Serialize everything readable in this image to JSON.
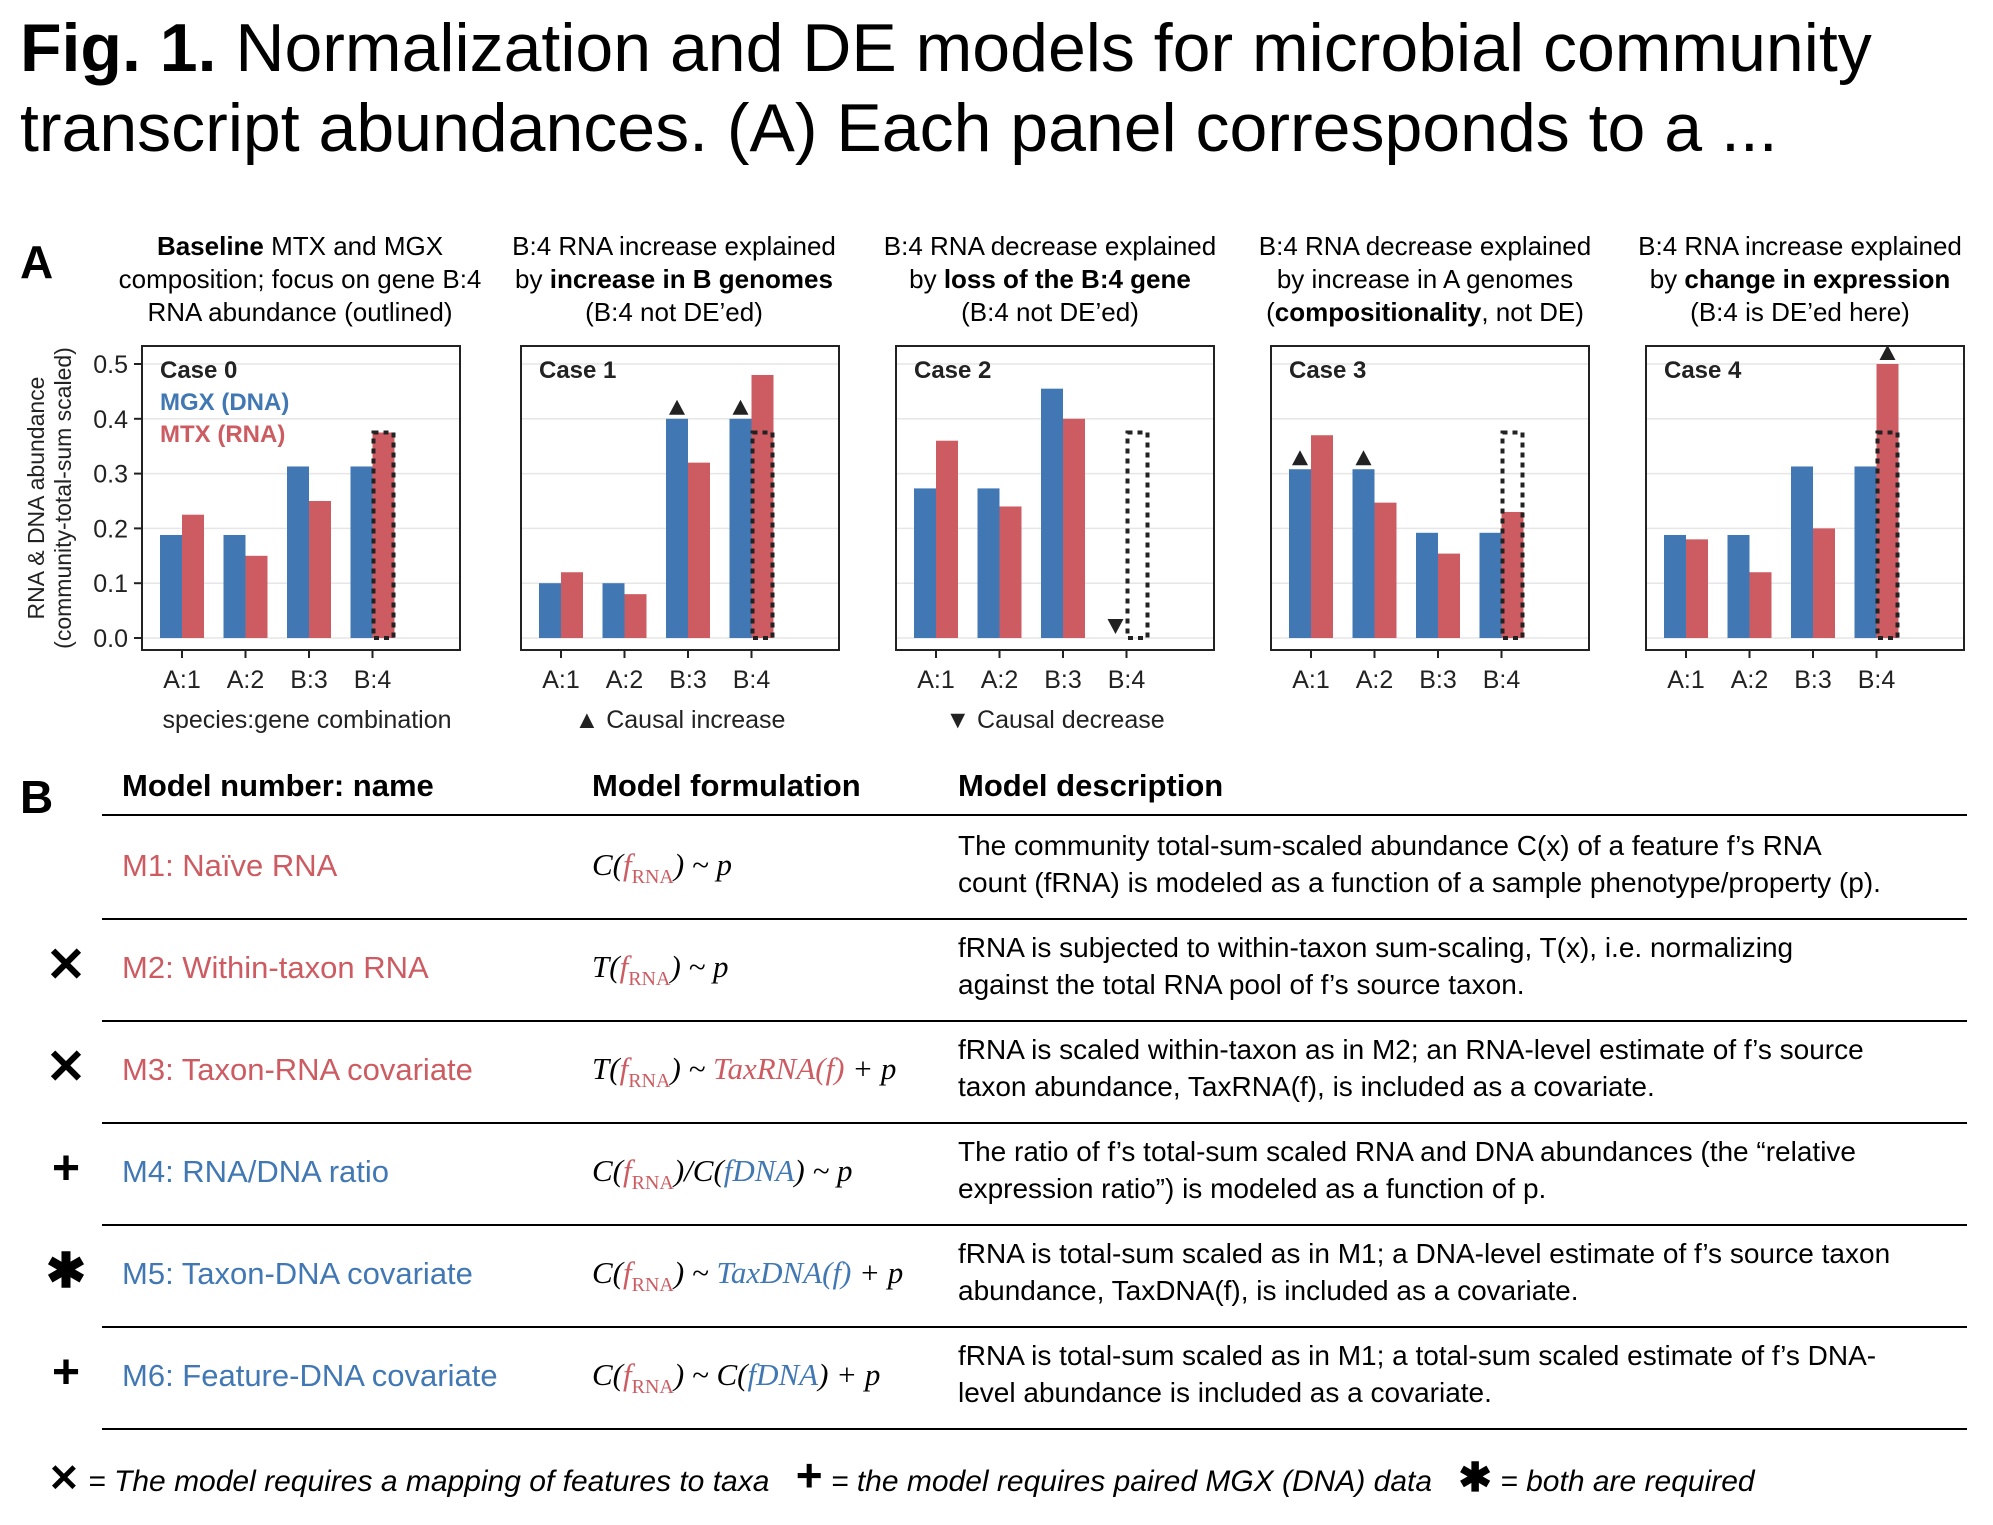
{
  "figure": {
    "title_bold": "Fig. 1.",
    "title_rest": " Normalization and DE models for microbial community transcript abundances. (A) Each panel corresponds to a ...",
    "panel_a_letter": "A",
    "panel_b_letter": "B"
  },
  "colors": {
    "dna": "#4178b4",
    "rna": "#cc5c62",
    "highlight": "#000000"
  },
  "panel_headers": [
    {
      "l1_bold": "Baseline",
      "l1": " MTX and MGX",
      "l2_pre": "composition; focus on gene B:4",
      "l2_bold": "",
      "l3": "RNA abundance (outlined)"
    },
    {
      "l1_bold": "",
      "l1": "B:4 RNA increase explained",
      "l2_pre": "by ",
      "l2_bold": "increase in B genomes",
      "l3": "(B:4 not DE’ed)"
    },
    {
      "l1_bold": "",
      "l1": "B:4 RNA decrease explained",
      "l2_pre": "by ",
      "l2_bold": "loss of the B:4 gene",
      "l3": "(B:4 not DE’ed)"
    },
    {
      "l1_bold": "",
      "l1": "B:4 RNA decrease explained",
      "l2_pre": "by increase in A genomes",
      "l2_bold": "",
      "l3_pre": "(",
      "l3_bold": "compositionality",
      "l3_post": ", not DE)"
    },
    {
      "l1_bold": "",
      "l1": "B:4 RNA increase explained",
      "l2_pre": "by ",
      "l2_bold": "change in expression",
      "l3": "(B:4 is DE’ed here)"
    }
  ],
  "chart_data": [
    {
      "type": "bar",
      "title": "Case 0",
      "categories": [
        "A:1",
        "A:2",
        "B:3",
        "B:4"
      ],
      "series": [
        {
          "name": "MGX (DNA)",
          "values": [
            0.188,
            0.188,
            0.313,
            0.313
          ]
        },
        {
          "name": "MTX (RNA)",
          "values": [
            0.225,
            0.15,
            0.25,
            0.375
          ]
        }
      ],
      "outlined_category": "B:4",
      "markers": [],
      "ylabel": "RNA & DNA abundance (community-total-sum scaled)",
      "xlabel": "species:gene combination",
      "ylim": [
        0,
        0.5
      ],
      "yticks": [
        "0.0",
        "0.1",
        "0.2",
        "0.3",
        "0.4",
        "0.5"
      ],
      "grid": true,
      "legend": "top-left"
    },
    {
      "type": "bar",
      "title": "Case 1",
      "categories": [
        "A:1",
        "A:2",
        "B:3",
        "B:4"
      ],
      "series": [
        {
          "name": "MGX (DNA)",
          "values": [
            0.1,
            0.1,
            0.4,
            0.4
          ]
        },
        {
          "name": "MTX (RNA)",
          "values": [
            0.12,
            0.08,
            0.32,
            0.48
          ]
        }
      ],
      "outlined_category": "B:4",
      "markers": [
        {
          "category": "B:3",
          "series": 0,
          "dir": "up"
        },
        {
          "category": "B:4",
          "series": 0,
          "dir": "up"
        }
      ],
      "xlabel": "▲ Causal increase",
      "ylim": [
        0,
        0.5
      ],
      "grid": true
    },
    {
      "type": "bar",
      "title": "Case 2",
      "categories": [
        "A:1",
        "A:2",
        "B:3",
        "B:4"
      ],
      "series": [
        {
          "name": "MGX (DNA)",
          "values": [
            0.273,
            0.273,
            0.455,
            0.0
          ]
        },
        {
          "name": "MTX (RNA)",
          "values": [
            0.36,
            0.24,
            0.4,
            0.0
          ]
        }
      ],
      "outlined_category": "B:4",
      "markers": [
        {
          "category": "B:4",
          "series": 0,
          "dir": "down"
        }
      ],
      "xlabel": "▼ Causal decrease",
      "ylim": [
        0,
        0.5
      ],
      "grid": true
    },
    {
      "type": "bar",
      "title": "Case 3",
      "categories": [
        "A:1",
        "A:2",
        "B:3",
        "B:4"
      ],
      "series": [
        {
          "name": "MGX (DNA)",
          "values": [
            0.308,
            0.308,
            0.192,
            0.192
          ]
        },
        {
          "name": "MTX (RNA)",
          "values": [
            0.37,
            0.247,
            0.154,
            0.23
          ]
        }
      ],
      "outlined_category": "B:4",
      "markers": [
        {
          "category": "A:1",
          "series": 0,
          "dir": "up"
        },
        {
          "category": "A:2",
          "series": 0,
          "dir": "up"
        }
      ],
      "xlabel": "",
      "ylim": [
        0,
        0.5
      ],
      "grid": true
    },
    {
      "type": "bar",
      "title": "Case 4",
      "categories": [
        "A:1",
        "A:2",
        "B:3",
        "B:4"
      ],
      "series": [
        {
          "name": "MGX (DNA)",
          "values": [
            0.188,
            0.188,
            0.313,
            0.313
          ]
        },
        {
          "name": "MTX (RNA)",
          "values": [
            0.18,
            0.12,
            0.2,
            0.5
          ]
        }
      ],
      "outlined_category": "B:4",
      "markers": [
        {
          "category": "B:4",
          "series": 1,
          "dir": "up"
        }
      ],
      "xlabel": "",
      "ylim": [
        0,
        0.5
      ],
      "grid": true
    }
  ],
  "table": {
    "headers": [
      "Model number: name",
      "Model formulation",
      "Model description"
    ],
    "rows": [
      {
        "symbol": "",
        "color": "red",
        "name": "M1: Naïve RNA",
        "f": [
          "C(",
          "f",
          "RNA",
          ") ~ p",
          "",
          "",
          ""
        ],
        "d1": "The community total-sum-scaled abundance C(x) of a feature f’s RNA",
        "d2": "count (fRNA) is modeled as a function of a sample phenotype/property (p)."
      },
      {
        "symbol": "✕",
        "color": "red",
        "name": "M2: Within-taxon RNA",
        "f": [
          "T(",
          "f",
          "RNA",
          ") ~ p",
          "",
          "",
          ""
        ],
        "d1": "fRNA is subjected to within-taxon sum-scaling, T(x), i.e. normalizing",
        "d2": "against the total RNA pool of f’s source taxon."
      },
      {
        "symbol": "✕",
        "color": "red",
        "name": "M3: Taxon-RNA covariate",
        "f": [
          "T(",
          "f",
          "RNA",
          ") ~ ",
          "TaxRNA(f)",
          "",
          " + p"
        ],
        "d1": "fRNA is scaled within-taxon as in M2; an RNA-level estimate of f’s source",
        "d2": "taxon abundance, TaxRNA(f), is included as a covariate."
      },
      {
        "symbol": "+",
        "color": "blue",
        "name": "M4: RNA/DNA ratio",
        "f": [
          "C(",
          "f",
          "RNA",
          ")/C(",
          "fDNA",
          "",
          ") ~ p"
        ],
        "d1": "The ratio of f’s total-sum scaled RNA and DNA abundances (the “relative",
        "d2": "expression ratio”) is modeled as a function of p."
      },
      {
        "symbol": "✱",
        "color": "blue",
        "name": "M5: Taxon-DNA covariate",
        "f": [
          "C(",
          "f",
          "RNA",
          ") ~ ",
          "TaxDNA(f)",
          "",
          " + p"
        ],
        "d1": "fRNA is total-sum scaled as in M1; a DNA-level estimate of f’s source taxon",
        "d2": "abundance, TaxDNA(f), is included as a covariate."
      },
      {
        "symbol": "+",
        "color": "blue",
        "name": "M6: Feature-DNA covariate",
        "f": [
          "C(",
          "f",
          "RNA",
          ") ~ C(",
          "fDNA",
          "",
          ") + p"
        ],
        "d1": "fRNA is total-sum scaled as in M1; a total-sum scaled estimate of f’s DNA-",
        "d2": "level abundance is included as a covariate."
      }
    ]
  },
  "legend": {
    "s1": "✕",
    "t1": " = The model requires a mapping of features to taxa",
    "s2": "+",
    "t2": " = the model requires paired MGX (DNA) data",
    "s3": "✱",
    "t3": " = both are required"
  }
}
